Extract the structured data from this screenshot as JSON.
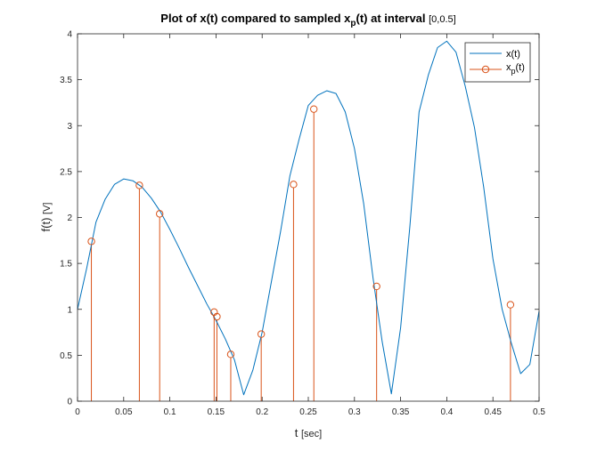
{
  "chart_data": {
    "type": "line",
    "title": {
      "part1": "Plot of x(t) compared to sampled x",
      "sub": "p",
      "part2": "(t) at interval ",
      "interval": "[0,0.5]"
    },
    "xlabel": {
      "main": "t ",
      "unit": "[sec]"
    },
    "ylabel": {
      "main": "f(t) ",
      "unit": "[V]"
    },
    "xlim": [
      0,
      0.5
    ],
    "ylim": [
      0,
      4
    ],
    "xticks": [
      "0",
      "0.05",
      "0.1",
      "0.15",
      "0.2",
      "0.25",
      "0.3",
      "0.35",
      "0.4",
      "0.45",
      "0.5"
    ],
    "yticks": [
      "0",
      "0.5",
      "1",
      "1.5",
      "2",
      "2.5",
      "3",
      "3.5",
      "4"
    ],
    "grid": false,
    "legend_position": "top-right",
    "series": [
      {
        "name": "x(t)",
        "style": "line",
        "color": "#0072BD",
        "x": [
          0,
          0.01,
          0.02,
          0.03,
          0.04,
          0.05,
          0.06,
          0.07,
          0.08,
          0.09,
          0.1,
          0.11,
          0.12,
          0.13,
          0.14,
          0.15,
          0.16,
          0.17,
          0.18,
          0.19,
          0.2,
          0.21,
          0.22,
          0.23,
          0.24,
          0.25,
          0.26,
          0.27,
          0.28,
          0.29,
          0.3,
          0.31,
          0.32,
          0.33,
          0.34,
          0.35,
          0.36,
          0.37,
          0.38,
          0.39,
          0.4,
          0.41,
          0.42,
          0.43,
          0.44,
          0.45,
          0.46,
          0.47,
          0.48,
          0.49,
          0.5
        ],
        "y": [
          1.0,
          1.45,
          1.95,
          2.2,
          2.36,
          2.42,
          2.4,
          2.33,
          2.21,
          2.06,
          1.87,
          1.67,
          1.46,
          1.26,
          1.06,
          0.88,
          0.68,
          0.45,
          0.07,
          0.34,
          0.75,
          1.3,
          1.85,
          2.45,
          2.85,
          3.22,
          3.33,
          3.38,
          3.35,
          3.15,
          2.75,
          2.15,
          1.35,
          0.65,
          0.08,
          0.8,
          1.9,
          3.15,
          3.55,
          3.85,
          3.92,
          3.8,
          3.43,
          2.98,
          2.33,
          1.55,
          1.0,
          0.63,
          0.3,
          0.4,
          0.98
        ]
      },
      {
        "name": "x",
        "name_sub": "p",
        "name_suffix": "(t)",
        "style": "stem",
        "color": "#D95319",
        "x": [
          0.015,
          0.067,
          0.089,
          0.148,
          0.151,
          0.166,
          0.199,
          0.234,
          0.256,
          0.324,
          0.469
        ],
        "y": [
          1.74,
          2.35,
          2.04,
          0.97,
          0.92,
          0.51,
          0.73,
          2.36,
          3.18,
          1.25,
          1.05
        ]
      }
    ]
  }
}
